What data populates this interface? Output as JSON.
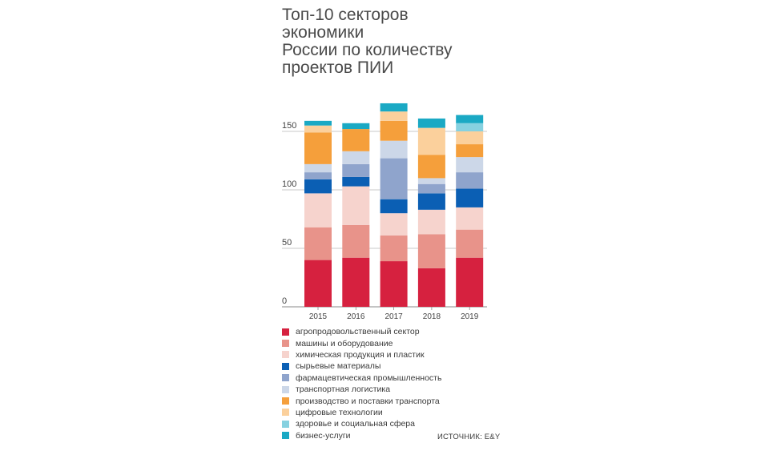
{
  "title_lines": [
    "Топ-10 секторов экономики",
    "России по количеству",
    "проектов ПИИ"
  ],
  "source": "ИСТОЧНИК: E&Y",
  "chart_data": {
    "type": "bar",
    "stacked": true,
    "categories": [
      "2015",
      "2016",
      "2017",
      "2018",
      "2019"
    ],
    "ylim": [
      0,
      170
    ],
    "yticks": [
      0,
      50,
      100,
      150
    ],
    "grid": true,
    "legend_position": "bottom",
    "series": [
      {
        "name": "агропродовольственный сектор",
        "color": "#d6213f",
        "values": [
          40,
          42,
          39,
          33,
          42
        ]
      },
      {
        "name": "машины и оборудование",
        "color": "#e8938a",
        "values": [
          28,
          28,
          22,
          29,
          24
        ]
      },
      {
        "name": "химическая продукция и пластик",
        "color": "#f6d3cd",
        "values": [
          29,
          33,
          19,
          21,
          19
        ]
      },
      {
        "name": "сырьевые материалы",
        "color": "#0b5fb4",
        "values": [
          12,
          8,
          12,
          14,
          16
        ]
      },
      {
        "name": "фармацевтическая промышленность",
        "color": "#8fa4cc",
        "values": [
          6,
          11,
          35,
          8,
          14
        ]
      },
      {
        "name": "транспортная логистика",
        "color": "#ccd7e8",
        "values": [
          7,
          11,
          15,
          5,
          13
        ]
      },
      {
        "name": "производство и поставки транспорта",
        "color": "#f59f3b",
        "values": [
          27,
          19,
          17,
          20,
          11
        ]
      },
      {
        "name": "цифровые технологии",
        "color": "#fbd09c",
        "values": [
          6,
          0,
          8,
          23,
          11
        ]
      },
      {
        "name": "здоровье и социальная сфера",
        "color": "#86d1e0",
        "values": [
          0,
          0,
          0,
          0,
          7
        ]
      },
      {
        "name": "бизнес-услуги",
        "color": "#1aa9c4",
        "values": [
          4,
          5,
          7,
          8,
          7
        ]
      }
    ]
  }
}
